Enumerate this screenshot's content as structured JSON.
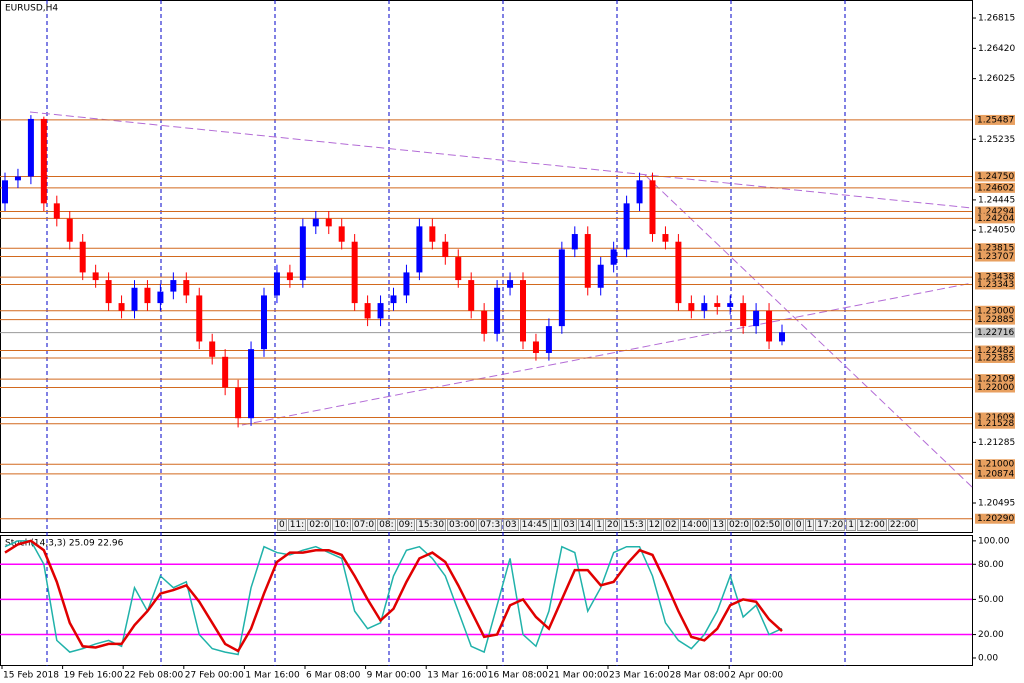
{
  "chart_data": [
    {
      "type": "candlestick",
      "title": "EURUSD,H4",
      "up_color": "#0000ff",
      "down_color": "#ff0000",
      "open": [
        1.244,
        1.247,
        1.2475,
        1.255,
        1.244,
        1.242,
        1.239,
        1.235,
        1.234,
        1.231,
        1.23,
        1.233,
        1.231,
        1.2325,
        1.234,
        1.232,
        1.226,
        1.224,
        1.22,
        1.216,
        1.225,
        1.232,
        1.235,
        1.234,
        1.241,
        1.242,
        1.241,
        1.239,
        1.231,
        1.229,
        1.231,
        1.232,
        1.235,
        1.241,
        1.239,
        1.237,
        1.234,
        1.23,
        1.227,
        1.233,
        1.234,
        1.226,
        1.2245,
        1.228,
        1.238,
        1.24,
        1.233,
        1.236,
        1.238,
        1.244,
        1.247,
        1.24,
        1.239,
        1.231,
        1.23,
        1.231,
        1.2305,
        1.231,
        1.228,
        1.23,
        1.226
      ],
      "high": [
        1.248,
        1.2485,
        1.2555,
        1.2553,
        1.245,
        1.243,
        1.24,
        1.236,
        1.235,
        1.232,
        1.234,
        1.234,
        1.2335,
        1.235,
        1.235,
        1.233,
        1.227,
        1.225,
        1.221,
        1.226,
        1.233,
        1.236,
        1.236,
        1.242,
        1.243,
        1.243,
        1.242,
        1.24,
        1.232,
        1.232,
        1.233,
        1.236,
        1.242,
        1.242,
        1.24,
        1.238,
        1.235,
        1.231,
        1.234,
        1.235,
        1.235,
        1.227,
        1.229,
        1.239,
        1.241,
        1.241,
        1.237,
        1.239,
        1.245,
        1.248,
        1.248,
        1.241,
        1.24,
        1.232,
        1.232,
        1.232,
        1.232,
        1.232,
        1.231,
        1.231,
        1.2282
      ],
      "low": [
        1.243,
        1.246,
        1.2465,
        1.243,
        1.241,
        1.238,
        1.234,
        1.233,
        1.23,
        1.229,
        1.229,
        1.23,
        1.23,
        1.2315,
        1.231,
        1.225,
        1.223,
        1.219,
        1.2148,
        1.215,
        1.224,
        1.231,
        1.233,
        1.233,
        1.24,
        1.24,
        1.238,
        1.23,
        1.228,
        1.228,
        1.23,
        1.231,
        1.234,
        1.238,
        1.236,
        1.233,
        1.229,
        1.226,
        1.226,
        1.232,
        1.225,
        1.2235,
        1.2235,
        1.227,
        1.237,
        1.232,
        1.232,
        1.235,
        1.237,
        1.243,
        1.239,
        1.238,
        1.23,
        1.229,
        1.229,
        1.2295,
        1.2295,
        1.227,
        1.227,
        1.225,
        1.2255
      ],
      "close": [
        1.247,
        1.2475,
        1.255,
        1.244,
        1.242,
        1.239,
        1.235,
        1.234,
        1.231,
        1.23,
        1.233,
        1.231,
        1.2325,
        1.234,
        1.232,
        1.226,
        1.224,
        1.22,
        1.216,
        1.225,
        1.232,
        1.235,
        1.234,
        1.241,
        1.242,
        1.241,
        1.239,
        1.231,
        1.229,
        1.231,
        1.232,
        1.235,
        1.241,
        1.239,
        1.237,
        1.234,
        1.23,
        1.227,
        1.233,
        1.234,
        1.226,
        1.2245,
        1.228,
        1.238,
        1.24,
        1.233,
        1.236,
        1.238,
        1.244,
        1.247,
        1.24,
        1.239,
        1.231,
        1.23,
        1.231,
        1.2305,
        1.231,
        1.228,
        1.23,
        1.226,
        1.2272
      ],
      "ylim": [
        1.20117,
        1.2705
      ],
      "yticks": [
        1.26815,
        {
          "value": 1.2642,
          "label": "1.26420"
        },
        1.26025,
        1.25235,
        1.24445,
        {
          "value": 1.2405,
          "label": "1.24050"
        },
        1.21285,
        1.20495
      ],
      "level_color": "#d2691e",
      "levels": [
        1.25487,
        {
          "value": 1.2475,
          "label": "1.24750"
        },
        1.24602,
        1.24294,
        1.24204,
        1.23815,
        1.23707,
        1.23438,
        1.23343,
        {
          "value": 1.23,
          "label": "1.23000"
        },
        1.22885,
        1.22482,
        1.22385,
        1.22109,
        {
          "value": 1.22,
          "label": "1.22000"
        },
        1.21609,
        1.21528,
        {
          "value": 1.21,
          "label": "1.21000"
        },
        1.20874,
        {
          "value": 1.2029,
          "label": "1.20290"
        }
      ],
      "current_price": 1.22716,
      "time_labels": [
        "0",
        "11:",
        "02:0",
        "10:",
        "07:0",
        "08:",
        "09:",
        "15:30",
        "03:00",
        "07:3",
        "03",
        "14:45",
        "1",
        "03",
        "14",
        "1",
        "20",
        "15:3",
        "12",
        "02",
        "14:00",
        "13",
        "02:0",
        "02:50",
        "0",
        "0",
        "1",
        "17:20",
        "1",
        "12:00",
        "22:00"
      ]
    },
    {
      "type": "line",
      "title": "Stoch(14,3,3) 25.09 22.96",
      "series": [
        {
          "color": "#20b2aa",
          "values": [
            95,
            100,
            100,
            80,
            15,
            5,
            8,
            12,
            15,
            10,
            60,
            40,
            70,
            60,
            65,
            20,
            8,
            5,
            3,
            60,
            95,
            90,
            88,
            92,
            95,
            90,
            85,
            40,
            25,
            30,
            70,
            92,
            95,
            85,
            70,
            40,
            10,
            5,
            45,
            85,
            20,
            10,
            40,
            95,
            90,
            40,
            60,
            90,
            95,
            95,
            70,
            30,
            15,
            8,
            20,
            40,
            70,
            35,
            45,
            20,
            25.09
          ]
        },
        {
          "color": "#e00000",
          "values": [
            90,
            97,
            100,
            92,
            65,
            30,
            10,
            9,
            12,
            12,
            28,
            40,
            55,
            58,
            62,
            48,
            30,
            12,
            6,
            25,
            55,
            82,
            90,
            90,
            92,
            92,
            88,
            70,
            50,
            32,
            42,
            65,
            85,
            90,
            82,
            62,
            40,
            18,
            20,
            45,
            50,
            35,
            25,
            50,
            75,
            75,
            62,
            65,
            80,
            92,
            88,
            65,
            40,
            18,
            15,
            25,
            45,
            50,
            48,
            33,
            22.96
          ]
        }
      ],
      "ylim": [
        -6,
        105
      ],
      "yticks": [
        {
          "value": 100,
          "label": "100.00"
        },
        {
          "value": 80,
          "label": "80.00"
        },
        {
          "value": 50,
          "label": "50.00"
        },
        {
          "value": 20,
          "label": "20.00"
        },
        {
          "value": 0,
          "label": "0.00"
        }
      ],
      "levels": [
        80,
        50,
        20
      ],
      "level_color": "#ff00ff",
      "x_labels": [
        "15 Feb 2018",
        "19 Feb 16:00",
        "22 Feb 08:00",
        "27 Feb 00:00",
        "1 Mar 16:00",
        "6 Mar 08:00",
        "9 Mar 00:00",
        "13 Mar 16:00",
        "16 Mar 08:00",
        "21 Mar 00:00",
        "23 Mar 16:00",
        "28 Mar 08:00",
        "2 Apr 00:00"
      ]
    }
  ]
}
